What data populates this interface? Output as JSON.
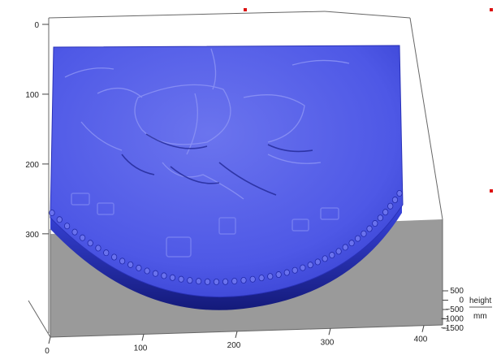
{
  "chart_data": {
    "type": "surface",
    "colormap": "blue",
    "x_ticks": [
      "0",
      "100",
      "200",
      "300",
      "400"
    ],
    "y_ticks": [
      "0",
      "100",
      "200",
      "300"
    ],
    "z_ticks": [
      "500",
      "0",
      "−500",
      "−1000",
      "−1500"
    ],
    "z_label": "height",
    "z_unit": "mm",
    "z_range": [
      -1500,
      500
    ],
    "x_range": [
      0,
      420
    ],
    "y_range": [
      0,
      380
    ]
  },
  "colors": {
    "surface": "#4a55e6",
    "surface_shadow": "#1f26a8",
    "floor": "#9a9a9a",
    "frame": "#555555"
  }
}
